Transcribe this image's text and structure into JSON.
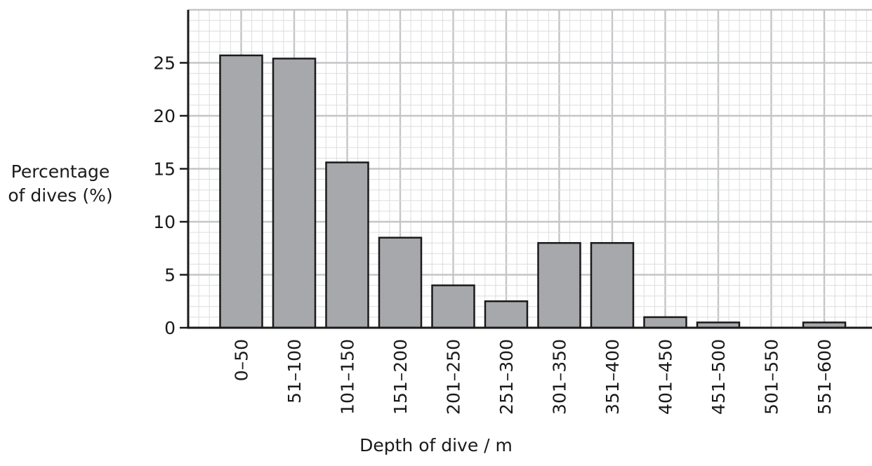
{
  "chart_data": {
    "type": "bar",
    "categories": [
      "0–50",
      "51–100",
      "101–150",
      "151–200",
      "201–250",
      "251–300",
      "301–350",
      "351–400",
      "401–450",
      "451–500",
      "501–550",
      "551–600"
    ],
    "values": [
      25.7,
      25.4,
      15.6,
      8.5,
      4.0,
      2.5,
      8.0,
      8.0,
      1.0,
      0.5,
      0.0,
      0.5
    ],
    "ylabel_lines": [
      "Percentage",
      "of dives (%)"
    ],
    "xlabel": "Depth of dive / m",
    "ylim": [
      0,
      30
    ],
    "yticks": [
      0,
      5,
      10,
      15,
      20,
      25
    ],
    "grid": true,
    "colors": {
      "bar": "#a7a8ab",
      "grid_major": "#c4c5c7",
      "grid_minor": "#dcdddf",
      "axis": "#1a1a1a"
    }
  }
}
